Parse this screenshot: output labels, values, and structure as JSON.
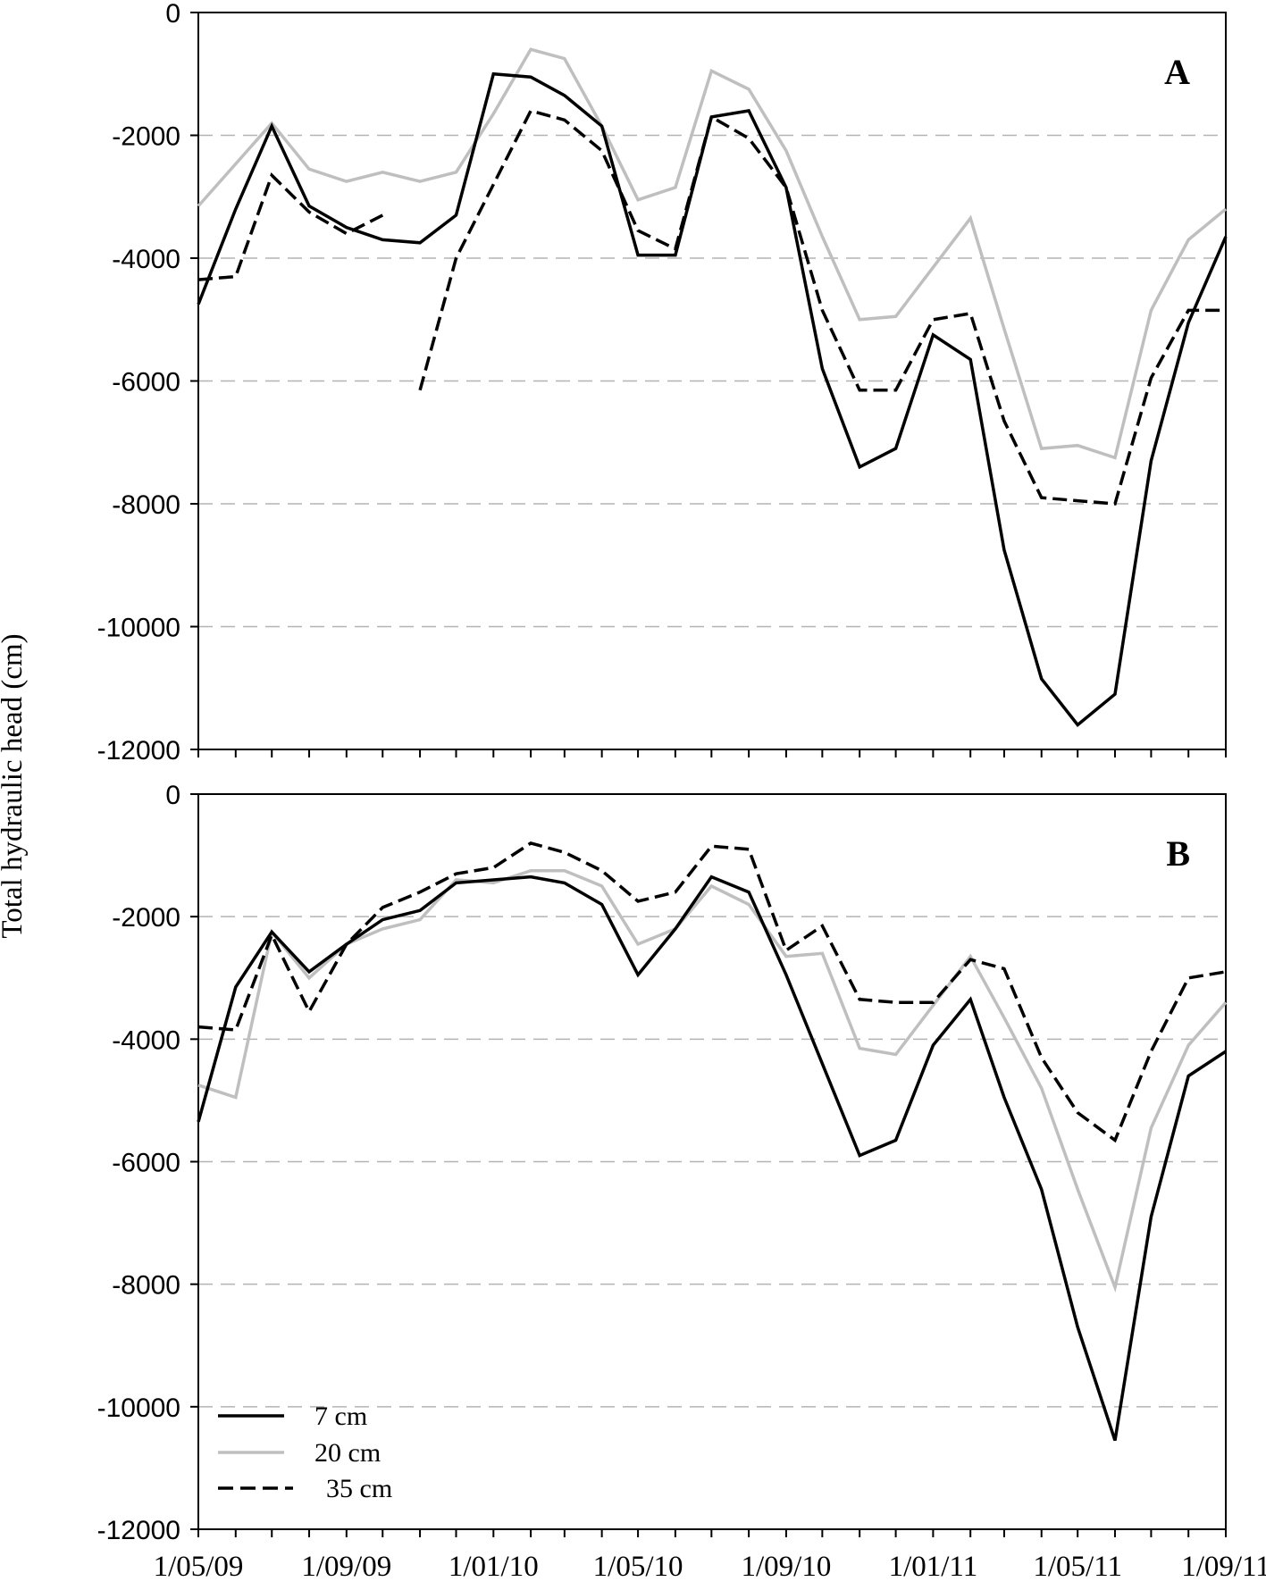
{
  "figure": {
    "ylabel": "Total hydraulic head (cm)",
    "legend_position": "bottom-left of panel B",
    "legend": [
      {
        "label": "7 cm",
        "color": "#000000",
        "dash": "solid"
      },
      {
        "label": "20 cm",
        "color": "#bfbfbf",
        "dash": "solid"
      },
      {
        "label": "35 cm",
        "color": "#000000",
        "dash": "dashed"
      }
    ]
  },
  "chart_data": [
    {
      "type": "line",
      "panel_label": "A",
      "x_tick_labels": [
        "1/05/09",
        "1/09/09",
        "1/01/10",
        "1/05/10",
        "1/09/10",
        "1/01/11",
        "1/05/11",
        "1/09/11"
      ],
      "xlim": [
        "1/05/09",
        "1/09/11"
      ],
      "ylim": [
        -12000,
        0
      ],
      "y_tick_labels": [
        "0",
        "-2000",
        "-4000",
        "-6000",
        "-8000",
        "-10000",
        "-12000"
      ],
      "grid": "horizontal dashed",
      "series": [
        {
          "name": "7 cm",
          "color": "#000000",
          "dash": "solid",
          "points": [
            [
              "2009-05-01",
              -4750
            ],
            [
              "2009-06-01",
              -3200
            ],
            [
              "2009-07-01",
              -1850
            ],
            [
              "2009-08-01",
              -3150
            ],
            [
              "2009-09-01",
              -3500
            ],
            [
              "2009-10-01",
              -3700
            ],
            [
              "2009-11-01",
              -3750
            ],
            [
              "2009-12-01",
              -3300
            ],
            [
              "2010-01-01",
              -1000
            ],
            [
              "2010-02-01",
              -1050
            ],
            [
              "2010-03-01",
              -1350
            ],
            [
              "2010-04-01",
              -1850
            ],
            [
              "2010-05-01",
              -3950
            ],
            [
              "2010-06-01",
              -3950
            ],
            [
              "2010-07-01",
              -1700
            ],
            [
              "2010-08-01",
              -1600
            ],
            [
              "2010-09-01",
              -2850
            ],
            [
              "2010-10-01",
              -5800
            ],
            [
              "2010-11-01",
              -7400
            ],
            [
              "2010-12-01",
              -7100
            ],
            [
              "2011-01-01",
              -5250
            ],
            [
              "2011-02-01",
              -5650
            ],
            [
              "2011-03-01",
              -8750
            ],
            [
              "2011-04-01",
              -10850
            ],
            [
              "2011-05-01",
              -11600
            ],
            [
              "2011-06-01",
              -11100
            ],
            [
              "2011-07-01",
              -7300
            ],
            [
              "2011-08-01",
              -5050
            ],
            [
              "2011-09-01",
              -3650
            ]
          ]
        },
        {
          "name": "20 cm",
          "color": "#bfbfbf",
          "dash": "solid",
          "points": [
            [
              "2009-05-01",
              -3150
            ],
            [
              "2009-07-01",
              -1800
            ],
            [
              "2009-08-01",
              -2550
            ],
            [
              "2009-09-01",
              -2750
            ],
            [
              "2009-10-01",
              -2600
            ],
            [
              "2009-11-01",
              -2750
            ],
            [
              "2009-12-01",
              -2600
            ],
            [
              "2010-01-01",
              -1650
            ],
            [
              "2010-02-01",
              -600
            ],
            [
              "2010-03-01",
              -750
            ],
            [
              "2010-04-01",
              -1850
            ],
            [
              "2010-05-01",
              -3050
            ],
            [
              "2010-06-01",
              -2850
            ],
            [
              "2010-07-01",
              -950
            ],
            [
              "2010-08-01",
              -1250
            ],
            [
              "2010-09-01",
              -2250
            ],
            [
              "2010-10-01",
              -3650
            ],
            [
              "2010-11-01",
              -5000
            ],
            [
              "2010-12-01",
              -4950
            ],
            [
              "2011-01-01",
              -4150
            ],
            [
              "2011-02-01",
              -3350
            ],
            [
              "2011-03-01",
              -5150
            ],
            [
              "2011-04-01",
              -7100
            ],
            [
              "2011-05-01",
              -7050
            ],
            [
              "2011-06-01",
              -7250
            ],
            [
              "2011-07-01",
              -4850
            ],
            [
              "2011-08-01",
              -3700
            ],
            [
              "2011-09-01",
              -3200
            ]
          ]
        },
        {
          "name": "35 cm",
          "color": "#000000",
          "dash": "dashed",
          "points": [
            [
              "2009-05-01",
              -4350
            ],
            [
              "2009-06-01",
              -4300
            ],
            [
              "2009-07-01",
              -2650
            ],
            [
              "2009-08-01",
              -3250
            ],
            [
              "2009-09-01",
              -3600
            ],
            [
              "2009-10-01",
              -3300
            ],
            null,
            [
              "2009-11-01",
              -6150
            ],
            [
              "2009-12-01",
              -4000
            ],
            [
              "2010-01-01",
              -2800
            ],
            [
              "2010-02-01",
              -1600
            ],
            [
              "2010-03-01",
              -1750
            ],
            [
              "2010-04-01",
              -2250
            ],
            [
              "2010-05-01",
              -3550
            ],
            [
              "2010-06-01",
              -3850
            ],
            [
              "2010-07-01",
              -1700
            ],
            [
              "2010-08-01",
              -2050
            ],
            [
              "2010-09-01",
              -2850
            ],
            [
              "2010-10-01",
              -4850
            ],
            [
              "2010-11-01",
              -6150
            ],
            [
              "2010-12-01",
              -6150
            ],
            [
              "2011-01-01",
              -5000
            ],
            [
              "2011-02-01",
              -4900
            ],
            [
              "2011-03-01",
              -6650
            ],
            [
              "2011-04-01",
              -7900
            ],
            [
              "2011-05-01",
              -7950
            ],
            [
              "2011-06-01",
              -8000
            ],
            [
              "2011-07-01",
              -5950
            ],
            [
              "2011-08-01",
              -4850
            ],
            [
              "2011-09-01",
              -4850
            ]
          ]
        }
      ]
    },
    {
      "type": "line",
      "panel_label": "B",
      "x_tick_labels": [
        "1/05/09",
        "1/09/09",
        "1/01/10",
        "1/05/10",
        "1/09/10",
        "1/01/11",
        "1/05/11",
        "1/09/11"
      ],
      "xlim": [
        "1/05/09",
        "1/09/11"
      ],
      "ylim": [
        -12000,
        0
      ],
      "y_tick_labels": [
        "0",
        "-2000",
        "-4000",
        "-6000",
        "-8000",
        "-10000",
        "-12000"
      ],
      "grid": "horizontal dashed",
      "series": [
        {
          "name": "7 cm",
          "color": "#000000",
          "dash": "solid",
          "points": [
            [
              "2009-05-01",
              -5350
            ],
            [
              "2009-06-01",
              -3150
            ],
            [
              "2009-07-01",
              -2250
            ],
            [
              "2009-08-01",
              -2900
            ],
            [
              "2009-09-01",
              -2450
            ],
            [
              "2009-10-01",
              -2050
            ],
            [
              "2009-11-01",
              -1900
            ],
            [
              "2009-12-01",
              -1450
            ],
            [
              "2010-01-01",
              -1400
            ],
            [
              "2010-02-01",
              -1350
            ],
            [
              "2010-03-01",
              -1450
            ],
            [
              "2010-04-01",
              -1800
            ],
            [
              "2010-05-01",
              -2950
            ],
            [
              "2010-06-01",
              -2200
            ],
            [
              "2010-07-01",
              -1350
            ],
            [
              "2010-08-01",
              -1600
            ],
            [
              "2010-09-01",
              -2950
            ],
            [
              "2010-10-01",
              -4400
            ],
            [
              "2010-11-01",
              -5900
            ],
            [
              "2010-12-01",
              -5650
            ],
            [
              "2011-01-01",
              -4100
            ],
            [
              "2011-02-01",
              -3350
            ],
            [
              "2011-03-01",
              -4950
            ],
            [
              "2011-04-01",
              -6450
            ],
            [
              "2011-05-01",
              -8700
            ],
            [
              "2011-06-01",
              -10550
            ],
            [
              "2011-07-01",
              -6900
            ],
            [
              "2011-08-01",
              -4600
            ],
            [
              "2011-09-01",
              -4200
            ]
          ]
        },
        {
          "name": "20 cm",
          "color": "#bfbfbf",
          "dash": "solid",
          "points": [
            [
              "2009-05-01",
              -4750
            ],
            [
              "2009-06-01",
              -4950
            ],
            [
              "2009-07-01",
              -2250
            ],
            [
              "2009-08-01",
              -3000
            ],
            [
              "2009-09-01",
              -2450
            ],
            [
              "2009-10-01",
              -2200
            ],
            [
              "2009-11-01",
              -2050
            ],
            [
              "2009-12-01",
              -1400
            ],
            [
              "2010-01-01",
              -1450
            ],
            [
              "2010-02-01",
              -1250
            ],
            [
              "2010-03-01",
              -1250
            ],
            [
              "2010-04-01",
              -1500
            ],
            [
              "2010-05-01",
              -2450
            ],
            [
              "2010-06-01",
              -2200
            ],
            [
              "2010-07-01",
              -1500
            ],
            [
              "2010-08-01",
              -1800
            ],
            [
              "2010-09-01",
              -2650
            ],
            [
              "2010-10-01",
              -2600
            ],
            [
              "2010-11-01",
              -4150
            ],
            [
              "2010-12-01",
              -4250
            ],
            [
              "2011-01-01",
              -3450
            ],
            [
              "2011-02-01",
              -2650
            ],
            [
              "2011-03-01",
              -3650
            ],
            [
              "2011-04-01",
              -4800
            ],
            [
              "2011-05-01",
              -6450
            ],
            [
              "2011-06-01",
              -8050
            ],
            [
              "2011-07-01",
              -5450
            ],
            [
              "2011-08-01",
              -4100
            ],
            [
              "2011-09-01",
              -3400
            ]
          ]
        },
        {
          "name": "35 cm",
          "color": "#000000",
          "dash": "dashed",
          "points": [
            [
              "2009-05-01",
              -3800
            ],
            [
              "2009-06-01",
              -3850
            ],
            [
              "2009-07-01",
              -2300
            ],
            [
              "2009-08-01",
              -3550
            ],
            [
              "2009-09-01",
              -2450
            ],
            [
              "2009-10-01",
              -1850
            ],
            [
              "2009-11-01",
              -1600
            ],
            [
              "2009-12-01",
              -1300
            ],
            [
              "2010-01-01",
              -1200
            ],
            [
              "2010-02-01",
              -800
            ],
            [
              "2010-03-01",
              -950
            ],
            [
              "2010-04-01",
              -1250
            ],
            [
              "2010-05-01",
              -1750
            ],
            [
              "2010-06-01",
              -1600
            ],
            [
              "2010-07-01",
              -850
            ],
            [
              "2010-08-01",
              -900
            ],
            [
              "2010-09-01",
              -2550
            ],
            [
              "2010-10-01",
              -2150
            ],
            [
              "2010-11-01",
              -3350
            ],
            [
              "2010-12-01",
              -3400
            ],
            [
              "2011-01-01",
              -3400
            ],
            [
              "2011-02-01",
              -2700
            ],
            [
              "2011-03-01",
              -2850
            ],
            [
              "2011-04-01",
              -4300
            ],
            [
              "2011-05-01",
              -5200
            ],
            [
              "2011-06-01",
              -5650
            ],
            [
              "2011-07-01",
              -4200
            ],
            [
              "2011-08-01",
              -3000
            ],
            [
              "2011-09-01",
              -2900
            ]
          ]
        }
      ]
    }
  ]
}
